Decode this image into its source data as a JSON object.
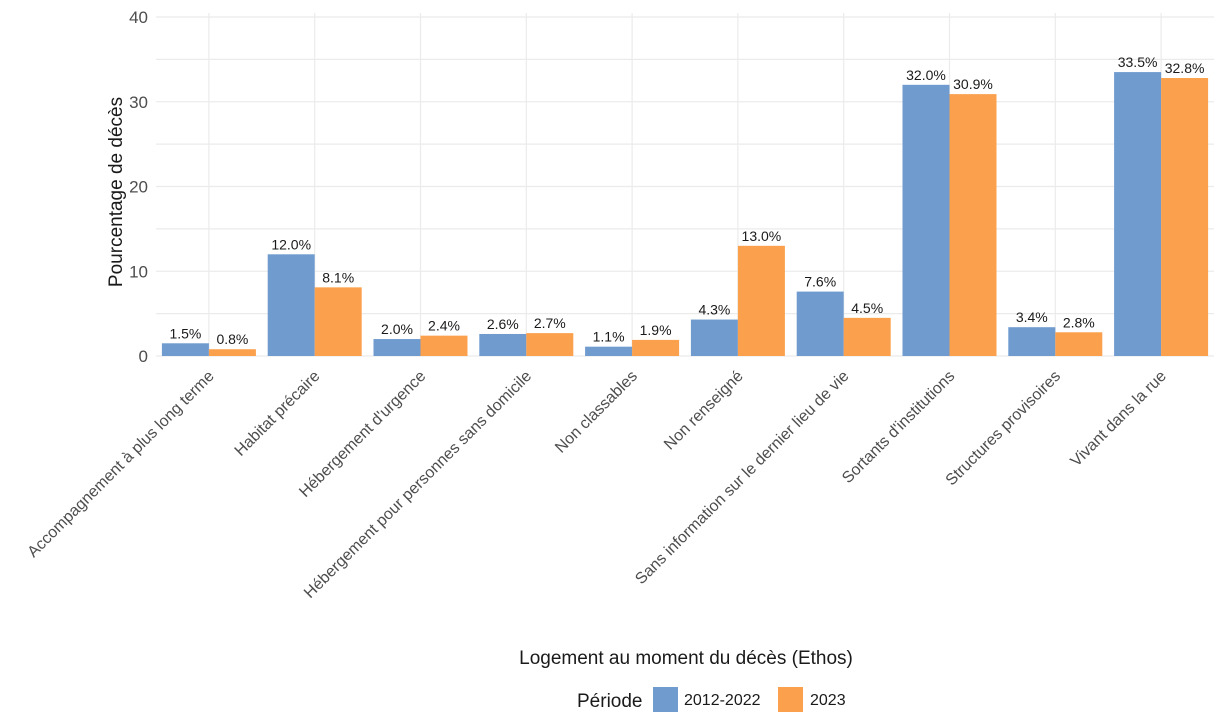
{
  "chart_data": {
    "type": "bar",
    "title": "",
    "xlabel": "Logement au moment du décès (Ethos)",
    "ylabel": "Pourcentage de décès",
    "ylim": [
      0,
      40
    ],
    "yticks": [
      0,
      10,
      20,
      30,
      40
    ],
    "grid": true,
    "legend_position": "bottom",
    "legend_title": "Période",
    "categories": [
      "Accompagnement à plus long terme",
      "Habitat précaire",
      "Hébergement d'urgence",
      "Hébergement pour personnes sans domicile",
      "Non classables",
      "Non renseigné",
      "Sans information sur le dernier lieu de vie",
      "Sortants d'institutions",
      "Structures provisoires",
      "Vivant dans la rue"
    ],
    "series": [
      {
        "name": "2012-2022",
        "color": "#6f9bcf",
        "values": [
          1.5,
          12.0,
          2.0,
          2.6,
          1.1,
          4.3,
          7.6,
          32.0,
          3.4,
          33.5
        ],
        "labels": [
          "1.5%",
          "12.0%",
          "2.0%",
          "2.6%",
          "1.1%",
          "4.3%",
          "7.6%",
          "32.0%",
          "3.4%",
          "33.5%"
        ]
      },
      {
        "name": "2023",
        "color": "#fba04c",
        "values": [
          0.8,
          8.1,
          2.4,
          2.7,
          1.9,
          13.0,
          4.5,
          30.9,
          2.8,
          32.8
        ],
        "labels": [
          "0.8%",
          "8.1%",
          "2.4%",
          "2.7%",
          "1.9%",
          "13.0%",
          "4.5%",
          "30.9%",
          "2.8%",
          "32.8%"
        ]
      }
    ]
  }
}
